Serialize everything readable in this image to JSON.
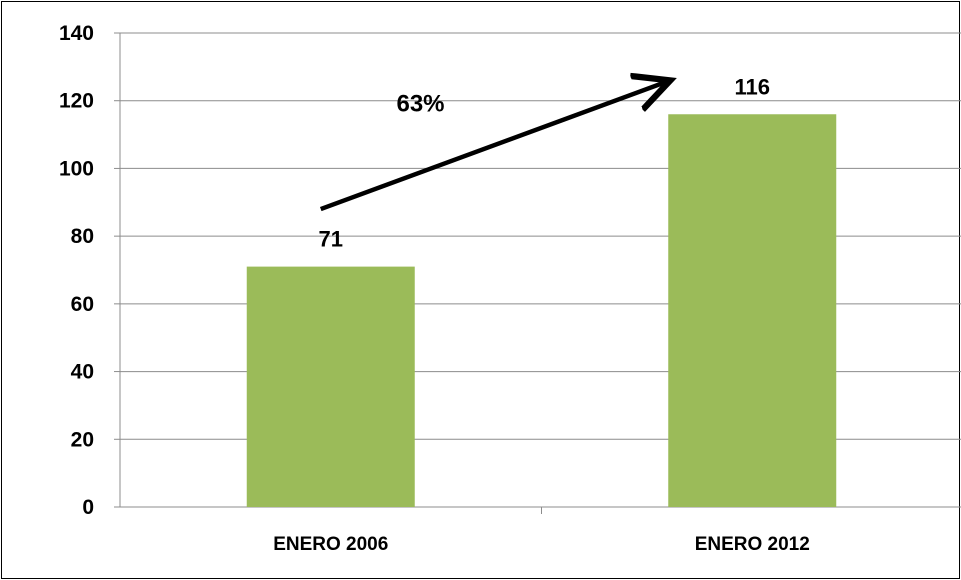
{
  "chart_data": {
    "type": "bar",
    "categories": [
      "ENERO 2006",
      "ENERO 2012"
    ],
    "values": [
      71,
      116
    ],
    "data_labels": [
      "71",
      "116"
    ],
    "ylim": [
      0,
      140
    ],
    "y_ticks": [
      0,
      20,
      40,
      60,
      80,
      100,
      120,
      140
    ],
    "y_tick_labels": [
      "0",
      "20",
      "40",
      "60",
      "80",
      "100",
      "120",
      "140"
    ],
    "grid": true,
    "legend": "none",
    "bar_color": "#9BBB59",
    "annotation": {
      "label": "63%",
      "arrow_from": {
        "category": "ENERO 2006",
        "value": 88
      },
      "arrow_to": {
        "category": "ENERO 2012",
        "value": 126
      }
    }
  }
}
